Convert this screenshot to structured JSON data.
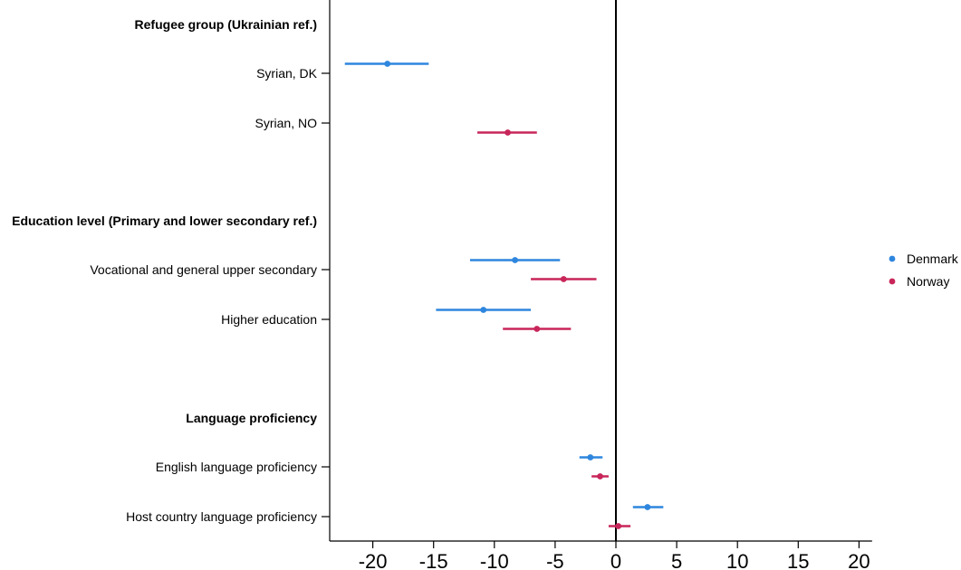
{
  "chart_data": {
    "type": "scatter",
    "subtype": "coefficient-plot",
    "orientation": "horizontal",
    "title": "",
    "xlabel": "",
    "ylabel": "",
    "xlim": [
      -23,
      21
    ],
    "x_ticks": [
      -20,
      -15,
      -10,
      -5,
      0,
      5,
      10,
      15,
      20
    ],
    "x_tick_labels": [
      "-20",
      "-15",
      "-10",
      "-5",
      "0",
      "5",
      "10",
      "15",
      "20"
    ],
    "reference_line": 0,
    "grid": false,
    "legend": {
      "position": "right"
    },
    "series": [
      {
        "name": "Denmark",
        "color": "#2e86de"
      },
      {
        "name": "Norway",
        "color": "#c8265a"
      }
    ],
    "rows": [
      {
        "label": "Refugee group (Ukrainian ref.)",
        "header": true
      },
      {
        "label": "Syrian, DK",
        "estimates": [
          {
            "series": "Denmark",
            "value": -18.8,
            "ci": [
              -22.3,
              -15.4
            ]
          }
        ]
      },
      {
        "label": "Syrian, NO",
        "estimates": [
          {
            "series": "Norway",
            "value": -8.9,
            "ci": [
              -11.4,
              -6.5
            ]
          }
        ]
      },
      {
        "label": "Education level (Primary and lower secondary ref.)",
        "header": true
      },
      {
        "label": "Vocational and general upper secondary",
        "estimates": [
          {
            "series": "Denmark",
            "value": -8.3,
            "ci": [
              -12.0,
              -4.6
            ]
          },
          {
            "series": "Norway",
            "value": -4.3,
            "ci": [
              -7.0,
              -1.6
            ]
          }
        ]
      },
      {
        "label": "Higher education",
        "estimates": [
          {
            "series": "Denmark",
            "value": -10.9,
            "ci": [
              -14.8,
              -7.0
            ]
          },
          {
            "series": "Norway",
            "value": -6.5,
            "ci": [
              -9.3,
              -3.7
            ]
          }
        ]
      },
      {
        "label": "Language proficiency",
        "header": true
      },
      {
        "label": "English language proficiency",
        "estimates": [
          {
            "series": "Denmark",
            "value": -2.1,
            "ci": [
              -3.0,
              -1.1
            ]
          },
          {
            "series": "Norway",
            "value": -1.3,
            "ci": [
              -2.0,
              -0.6
            ]
          }
        ]
      },
      {
        "label": "Host country language proficiency",
        "estimates": [
          {
            "series": "Denmark",
            "value": 2.6,
            "ci": [
              1.4,
              3.9
            ]
          },
          {
            "series": "Norway",
            "value": 0.2,
            "ci": [
              -0.6,
              1.2
            ]
          }
        ]
      }
    ]
  }
}
